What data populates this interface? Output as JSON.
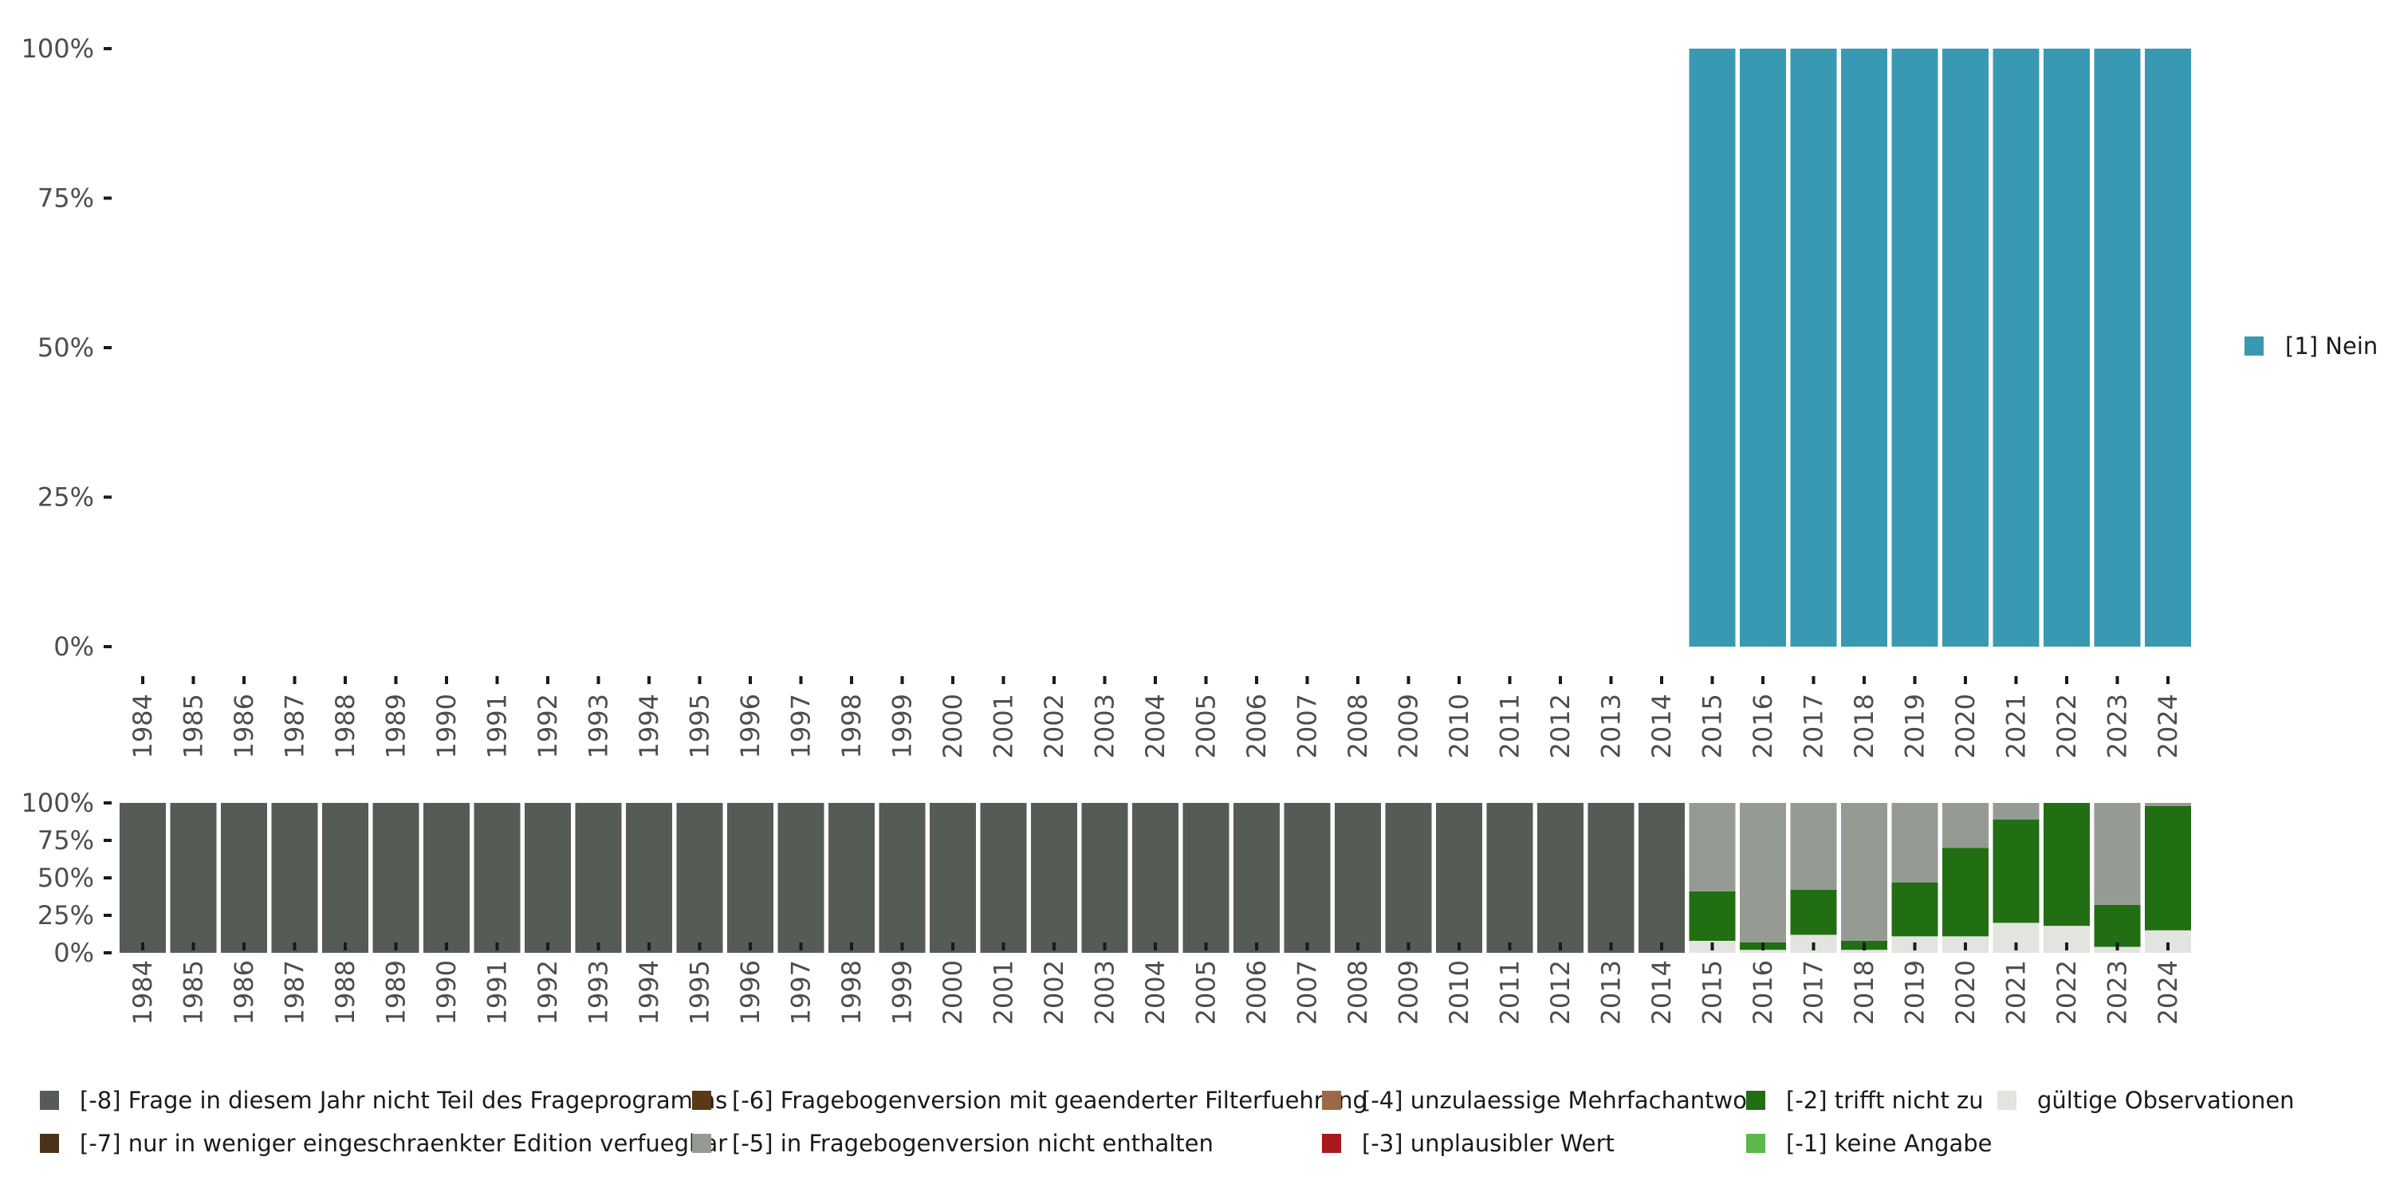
{
  "chart_data": [
    {
      "type": "bar",
      "stacked": true,
      "x": [
        1984,
        1985,
        1986,
        1987,
        1988,
        1989,
        1990,
        1991,
        1992,
        1993,
        1994,
        1995,
        1996,
        1997,
        1998,
        1999,
        2000,
        2001,
        2002,
        2003,
        2004,
        2005,
        2006,
        2007,
        2008,
        2009,
        2010,
        2011,
        2012,
        2013,
        2014,
        2015,
        2016,
        2017,
        2018,
        2019,
        2020,
        2021,
        2022,
        2023,
        2024
      ],
      "ylim": [
        0,
        1
      ],
      "y_ticks": [
        0,
        0.25,
        0.5,
        0.75,
        1
      ],
      "y_tick_labels": [
        "0%",
        "25%",
        "50%",
        "75%",
        "100%"
      ],
      "grid": false,
      "legend_position": "right",
      "series": [
        {
          "name": "[1] Nein",
          "color": "#3a99b2",
          "values": [
            null,
            null,
            null,
            null,
            null,
            null,
            null,
            null,
            null,
            null,
            null,
            null,
            null,
            null,
            null,
            null,
            null,
            null,
            null,
            null,
            null,
            null,
            null,
            null,
            null,
            null,
            null,
            null,
            null,
            null,
            null,
            1,
            1,
            1,
            1,
            1,
            1,
            1,
            1,
            1,
            1
          ]
        }
      ]
    },
    {
      "type": "bar",
      "stacked": true,
      "x": [
        1984,
        1985,
        1986,
        1987,
        1988,
        1989,
        1990,
        1991,
        1992,
        1993,
        1994,
        1995,
        1996,
        1997,
        1998,
        1999,
        2000,
        2001,
        2002,
        2003,
        2004,
        2005,
        2006,
        2007,
        2008,
        2009,
        2010,
        2011,
        2012,
        2013,
        2014,
        2015,
        2016,
        2017,
        2018,
        2019,
        2020,
        2021,
        2022,
        2023,
        2024
      ],
      "ylim": [
        0,
        1
      ],
      "y_ticks": [
        0,
        0.25,
        0.5,
        0.75,
        1
      ],
      "y_tick_labels": [
        "0%",
        "25%",
        "50%",
        "75%",
        "100%"
      ],
      "grid": false,
      "legend_position": "bottom",
      "series": [
        {
          "name": "gültige Observationen",
          "color": "#e2e4df",
          "values": [
            0,
            0,
            0,
            0,
            0,
            0,
            0,
            0,
            0,
            0,
            0,
            0,
            0,
            0,
            0,
            0,
            0,
            0,
            0,
            0,
            0,
            0,
            0,
            0,
            0,
            0,
            0,
            0,
            0,
            0,
            0,
            0.08,
            0.02,
            0.12,
            0.02,
            0.11,
            0.11,
            0.2,
            0.18,
            0.04,
            0.15
          ]
        },
        {
          "name": "[-2] trifft nicht zu",
          "color": "#226e13",
          "values": [
            0,
            0,
            0,
            0,
            0,
            0,
            0,
            0,
            0,
            0,
            0,
            0,
            0,
            0,
            0,
            0,
            0,
            0,
            0,
            0,
            0,
            0,
            0,
            0,
            0,
            0,
            0,
            0,
            0,
            0,
            0,
            0.33,
            0.05,
            0.3,
            0.06,
            0.36,
            0.59,
            0.69,
            0.82,
            0.28,
            0.83
          ]
        },
        {
          "name": "[-5] in Fragebogenversion nicht enthalten",
          "color": "#959b92",
          "values": [
            0,
            0,
            0,
            0,
            0,
            0,
            0,
            0,
            0,
            0,
            0,
            0,
            0,
            0,
            0,
            0,
            0,
            0,
            0,
            0,
            0,
            0,
            0,
            0,
            0,
            0,
            0,
            0,
            0,
            0,
            0,
            0.59,
            0.93,
            0.58,
            0.92,
            0.53,
            0.3,
            0.11,
            0,
            0.68,
            0.02
          ]
        },
        {
          "name": "[-8] Frage in diesem Jahr nicht Teil des Frageprogramms",
          "color": "#555b55",
          "values": [
            1,
            1,
            1,
            1,
            1,
            1,
            1,
            1,
            1,
            1,
            1,
            1,
            1,
            1,
            1,
            1,
            1,
            1,
            1,
            1,
            1,
            1,
            1,
            1,
            1,
            1,
            1,
            1,
            1,
            1,
            1,
            0,
            0,
            0,
            0,
            0,
            0,
            0,
            0,
            0,
            0
          ]
        }
      ]
    }
  ],
  "legend_bottom": [
    {
      "label": "[-8] Frage in diesem Jahr nicht Teil des Frageprogramms",
      "color": "#555b55"
    },
    {
      "label": "[-7] nur in weniger eingeschraenkter Edition verfuegbar",
      "color": "#4a3218"
    },
    {
      "label": "[-6] Fragebogenversion mit geaenderter Filterfuehrung",
      "color": "#5a3a16"
    },
    {
      "label": "[-5] in Fragebogenversion nicht enthalten",
      "color": "#959b92"
    },
    {
      "label": "[-4] unzulaessige Mehrfachantwort",
      "color": "#9a6a48"
    },
    {
      "label": "[-3] unplausibler Wert",
      "color": "#a8191b"
    },
    {
      "label": "[-2] trifft nicht zu",
      "color": "#226e13"
    },
    {
      "label": "[-1] keine Angabe",
      "color": "#5cb84a"
    },
    {
      "label": "gültige Observationen",
      "color": "#e2e4df"
    }
  ]
}
